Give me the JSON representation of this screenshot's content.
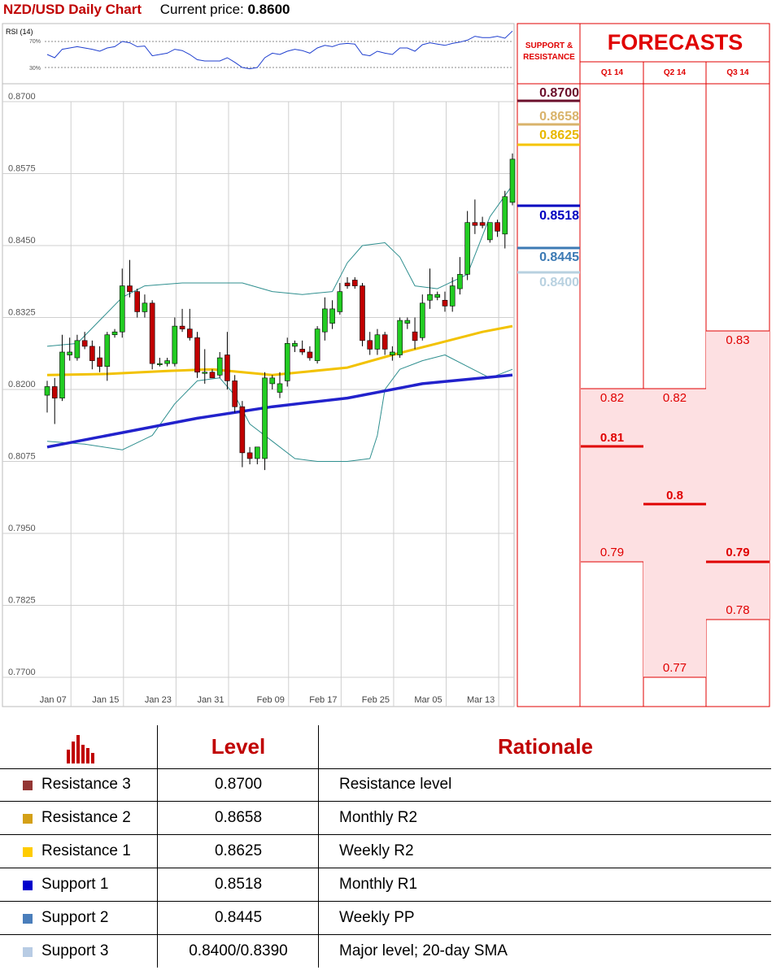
{
  "header": {
    "title": "NZD/USD Daily Chart",
    "price_label": "Current price:",
    "price_value": "0.8600"
  },
  "chart_data": {
    "type": "candlestick",
    "title": "NZD/USD Daily Chart",
    "ylim": [
      0.77,
      0.87
    ],
    "y_ticks": [
      "0.8700",
      "0.8575",
      "0.8450",
      "0.8325",
      "0.8200",
      "0.8075",
      "0.7950",
      "0.7825",
      "0.7700"
    ],
    "x_ticks": [
      "Jan 07",
      "Jan 15",
      "Jan 23",
      "Jan 31",
      "Feb 09",
      "Feb 17",
      "Feb 25",
      "Mar 05",
      "Mar 13"
    ],
    "x_tick_index": [
      1,
      8,
      15,
      22,
      30,
      37,
      44,
      51,
      58
    ],
    "grid": true,
    "candles": [
      {
        "o": 0.819,
        "h": 0.8215,
        "l": 0.816,
        "c": 0.8205
      },
      {
        "o": 0.8205,
        "h": 0.822,
        "l": 0.814,
        "c": 0.8185
      },
      {
        "o": 0.8185,
        "h": 0.8295,
        "l": 0.818,
        "c": 0.8265
      },
      {
        "o": 0.826,
        "h": 0.829,
        "l": 0.825,
        "c": 0.8265
      },
      {
        "o": 0.8255,
        "h": 0.8295,
        "l": 0.825,
        "c": 0.8285
      },
      {
        "o": 0.8285,
        "h": 0.83,
        "l": 0.827,
        "c": 0.8275
      },
      {
        "o": 0.8275,
        "h": 0.8285,
        "l": 0.8235,
        "c": 0.825
      },
      {
        "o": 0.8255,
        "h": 0.8275,
        "l": 0.823,
        "c": 0.824
      },
      {
        "o": 0.824,
        "h": 0.83,
        "l": 0.8215,
        "c": 0.8295
      },
      {
        "o": 0.8295,
        "h": 0.8305,
        "l": 0.829,
        "c": 0.83
      },
      {
        "o": 0.83,
        "h": 0.841,
        "l": 0.829,
        "c": 0.838
      },
      {
        "o": 0.838,
        "h": 0.8425,
        "l": 0.836,
        "c": 0.837
      },
      {
        "o": 0.837,
        "h": 0.8375,
        "l": 0.8325,
        "c": 0.8335
      },
      {
        "o": 0.8335,
        "h": 0.8365,
        "l": 0.8325,
        "c": 0.835
      },
      {
        "o": 0.835,
        "h": 0.8355,
        "l": 0.8235,
        "c": 0.8245
      },
      {
        "o": 0.8245,
        "h": 0.8255,
        "l": 0.824,
        "c": 0.8245
      },
      {
        "o": 0.8245,
        "h": 0.8255,
        "l": 0.824,
        "c": 0.825
      },
      {
        "o": 0.8245,
        "h": 0.8325,
        "l": 0.824,
        "c": 0.831
      },
      {
        "o": 0.831,
        "h": 0.834,
        "l": 0.83,
        "c": 0.8305
      },
      {
        "o": 0.8305,
        "h": 0.834,
        "l": 0.8285,
        "c": 0.829
      },
      {
        "o": 0.829,
        "h": 0.83,
        "l": 0.822,
        "c": 0.823
      },
      {
        "o": 0.823,
        "h": 0.827,
        "l": 0.821,
        "c": 0.823
      },
      {
        "o": 0.823,
        "h": 0.8235,
        "l": 0.822,
        "c": 0.822
      },
      {
        "o": 0.8225,
        "h": 0.8265,
        "l": 0.822,
        "c": 0.8255
      },
      {
        "o": 0.826,
        "h": 0.83,
        "l": 0.82,
        "c": 0.8215
      },
      {
        "o": 0.8215,
        "h": 0.8225,
        "l": 0.816,
        "c": 0.817
      },
      {
        "o": 0.817,
        "h": 0.818,
        "l": 0.8065,
        "c": 0.809
      },
      {
        "o": 0.809,
        "h": 0.81,
        "l": 0.807,
        "c": 0.808
      },
      {
        "o": 0.808,
        "h": 0.81,
        "l": 0.807,
        "c": 0.81
      },
      {
        "o": 0.808,
        "h": 0.823,
        "l": 0.806,
        "c": 0.822
      },
      {
        "o": 0.821,
        "h": 0.8225,
        "l": 0.82,
        "c": 0.822
      },
      {
        "o": 0.8195,
        "h": 0.823,
        "l": 0.8185,
        "c": 0.821
      },
      {
        "o": 0.8215,
        "h": 0.829,
        "l": 0.8205,
        "c": 0.828
      },
      {
        "o": 0.8275,
        "h": 0.8285,
        "l": 0.8265,
        "c": 0.828
      },
      {
        "o": 0.827,
        "h": 0.8285,
        "l": 0.826,
        "c": 0.8265
      },
      {
        "o": 0.8265,
        "h": 0.8275,
        "l": 0.825,
        "c": 0.8255
      },
      {
        "o": 0.825,
        "h": 0.831,
        "l": 0.8245,
        "c": 0.8305
      },
      {
        "o": 0.83,
        "h": 0.836,
        "l": 0.8285,
        "c": 0.834
      },
      {
        "o": 0.8315,
        "h": 0.8355,
        "l": 0.8305,
        "c": 0.834
      },
      {
        "o": 0.8335,
        "h": 0.8385,
        "l": 0.833,
        "c": 0.837
      },
      {
        "o": 0.8385,
        "h": 0.8395,
        "l": 0.8375,
        "c": 0.838
      },
      {
        "o": 0.839,
        "h": 0.8395,
        "l": 0.8375,
        "c": 0.838
      },
      {
        "o": 0.838,
        "h": 0.8385,
        "l": 0.8275,
        "c": 0.8285
      },
      {
        "o": 0.8285,
        "h": 0.83,
        "l": 0.826,
        "c": 0.827
      },
      {
        "o": 0.827,
        "h": 0.8305,
        "l": 0.826,
        "c": 0.8295
      },
      {
        "o": 0.8295,
        "h": 0.83,
        "l": 0.826,
        "c": 0.827
      },
      {
        "o": 0.826,
        "h": 0.8275,
        "l": 0.825,
        "c": 0.8265
      },
      {
        "o": 0.826,
        "h": 0.8325,
        "l": 0.8255,
        "c": 0.832
      },
      {
        "o": 0.8315,
        "h": 0.8325,
        "l": 0.8305,
        "c": 0.832
      },
      {
        "o": 0.83,
        "h": 0.8325,
        "l": 0.827,
        "c": 0.8285
      },
      {
        "o": 0.829,
        "h": 0.8365,
        "l": 0.8285,
        "c": 0.835
      },
      {
        "o": 0.8355,
        "h": 0.841,
        "l": 0.834,
        "c": 0.8365
      },
      {
        "o": 0.836,
        "h": 0.837,
        "l": 0.8355,
        "c": 0.8365
      },
      {
        "o": 0.8355,
        "h": 0.837,
        "l": 0.8335,
        "c": 0.8345
      },
      {
        "o": 0.8345,
        "h": 0.8395,
        "l": 0.8335,
        "c": 0.838
      },
      {
        "o": 0.8375,
        "h": 0.843,
        "l": 0.8365,
        "c": 0.84
      },
      {
        "o": 0.84,
        "h": 0.851,
        "l": 0.839,
        "c": 0.849
      },
      {
        "o": 0.849,
        "h": 0.853,
        "l": 0.847,
        "c": 0.8485
      },
      {
        "o": 0.849,
        "h": 0.85,
        "l": 0.848,
        "c": 0.8485
      },
      {
        "o": 0.846,
        "h": 0.849,
        "l": 0.8455,
        "c": 0.849
      },
      {
        "o": 0.849,
        "h": 0.8495,
        "l": 0.8465,
        "c": 0.8475
      },
      {
        "o": 0.847,
        "h": 0.8545,
        "l": 0.8445,
        "c": 0.8535
      },
      {
        "o": 0.8525,
        "h": 0.861,
        "l": 0.852,
        "c": 0.86
      }
    ],
    "sma_yellow": [
      [
        0,
        0.8225
      ],
      [
        8,
        0.8227
      ],
      [
        16,
        0.8232
      ],
      [
        22,
        0.8235
      ],
      [
        30,
        0.8225
      ],
      [
        40,
        0.8238
      ],
      [
        46,
        0.826
      ],
      [
        52,
        0.828
      ],
      [
        58,
        0.83
      ],
      [
        62,
        0.831
      ]
    ],
    "sma_blue": [
      [
        0,
        0.81
      ],
      [
        10,
        0.8125
      ],
      [
        20,
        0.815
      ],
      [
        30,
        0.817
      ],
      [
        40,
        0.8185
      ],
      [
        50,
        0.821
      ],
      [
        62,
        0.8225
      ]
    ],
    "bb_upper": [
      [
        0,
        0.8275
      ],
      [
        4,
        0.828
      ],
      [
        10,
        0.836
      ],
      [
        13,
        0.838
      ],
      [
        18,
        0.8385
      ],
      [
        22,
        0.8385
      ],
      [
        26,
        0.8385
      ],
      [
        30,
        0.837
      ],
      [
        34,
        0.8365
      ],
      [
        38,
        0.837
      ],
      [
        40,
        0.842
      ],
      [
        42,
        0.845
      ],
      [
        45,
        0.8455
      ],
      [
        47,
        0.843
      ],
      [
        49,
        0.838
      ],
      [
        52,
        0.8375
      ],
      [
        56,
        0.84
      ],
      [
        59,
        0.85
      ],
      [
        62,
        0.8555
      ]
    ],
    "bb_lower": [
      [
        0,
        0.811
      ],
      [
        5,
        0.8105
      ],
      [
        10,
        0.8095
      ],
      [
        14,
        0.812
      ],
      [
        17,
        0.8175
      ],
      [
        20,
        0.8215
      ],
      [
        23,
        0.822
      ],
      [
        25,
        0.819
      ],
      [
        27,
        0.814
      ],
      [
        30,
        0.811
      ],
      [
        33,
        0.808
      ],
      [
        36,
        0.8075
      ],
      [
        40,
        0.8075
      ],
      [
        43,
        0.808
      ],
      [
        44,
        0.812
      ],
      [
        45,
        0.82
      ],
      [
        47,
        0.8235
      ],
      [
        50,
        0.825
      ],
      [
        53,
        0.826
      ],
      [
        56,
        0.824
      ],
      [
        59,
        0.822
      ],
      [
        62,
        0.8235
      ]
    ],
    "rsi": {
      "label": "RSI (14)",
      "levels": [
        "70%",
        "30%"
      ],
      "values": [
        50,
        45,
        58,
        60,
        62,
        60,
        58,
        55,
        60,
        62,
        70,
        68,
        62,
        63,
        48,
        50,
        52,
        58,
        56,
        50,
        42,
        40,
        40,
        40,
        45,
        38,
        30,
        28,
        30,
        45,
        52,
        50,
        55,
        58,
        56,
        52,
        60,
        64,
        62,
        66,
        67,
        66,
        50,
        48,
        55,
        52,
        50,
        60,
        60,
        55,
        65,
        68,
        66,
        64,
        67,
        69,
        72,
        78,
        76,
        76,
        78,
        75,
        86
      ]
    }
  },
  "sr": {
    "title": "SUPPORT & RESISTANCE",
    "levels": [
      {
        "value": "0.8700",
        "color": "#6b0f2b"
      },
      {
        "value": "0.8658",
        "color": "#d9b36b"
      },
      {
        "value": "0.8625",
        "color": "#f5c400"
      },
      {
        "value": "0.8518",
        "color": "#0000c0"
      },
      {
        "value": "0.8445",
        "color": "#3c7ab4"
      },
      {
        "value": "0.8400",
        "color": "#b8d1e0"
      }
    ]
  },
  "forecasts": {
    "title": "FORECASTS",
    "quarters": [
      {
        "label": "Q1 14",
        "high": "0.82",
        "main": "0.81",
        "low": "0.79"
      },
      {
        "label": "Q2 14",
        "high": "0.82",
        "main": "0.8",
        "low": "0.77"
      },
      {
        "label": "Q3 14",
        "high": "0.83",
        "main": "0.79",
        "low": "0.78"
      }
    ]
  },
  "table": {
    "headers": {
      "level": "Level",
      "rationale": "Rationale"
    },
    "rows": [
      {
        "name": "Resistance 3",
        "level": "0.8700",
        "rationale": "Resistance level",
        "color": "#943634"
      },
      {
        "name": "Resistance 2",
        "level": "0.8658",
        "rationale": "Monthly R2",
        "color": "#d4a017"
      },
      {
        "name": "Resistance 1",
        "level": "0.8625",
        "rationale": "Weekly R2",
        "color": "#ffcc00"
      },
      {
        "name": "Support 1",
        "level": "0.8518",
        "rationale": "Monthly R1",
        "color": "#0000cc"
      },
      {
        "name": "Support 2",
        "level": "0.8445",
        "rationale": "Weekly PP",
        "color": "#4a7ebb"
      },
      {
        "name": "Support 3",
        "level": "0.8400/0.8390",
        "rationale": "Major level; 20-day SMA",
        "color": "#b8cce4"
      }
    ]
  }
}
